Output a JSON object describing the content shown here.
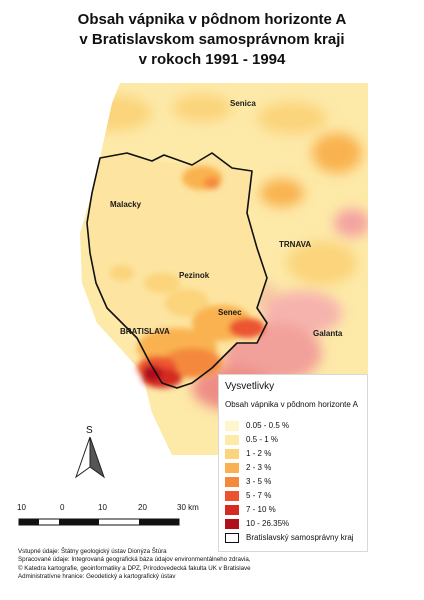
{
  "title": {
    "line1": "Obsah vápnika v pôdnom horizonte A",
    "line2": "v Bratislavskom samosprávnom kraji",
    "line3": "v rokoch 1991 - 1994"
  },
  "places": {
    "senica": "Senica",
    "malacky": "Malacky",
    "trnava": "TRNAVA",
    "pezinok": "Pezinok",
    "senec": "Senec",
    "bratislava": "BRATISLAVA",
    "galanta": "Galanta"
  },
  "legend": {
    "title": "Vysvetlivky",
    "subtitle": "Obsah vápnika v pôdnom horizonte A",
    "classes": [
      {
        "label": "0.05 - 0.5 %",
        "color": "#fff5cc"
      },
      {
        "label": "0.5 - 1 %",
        "color": "#fde9a8"
      },
      {
        "label": "1 - 2 %",
        "color": "#fbd47c"
      },
      {
        "label": "2 - 3 %",
        "color": "#f9b24f"
      },
      {
        "label": "3 - 5 %",
        "color": "#f4893c"
      },
      {
        "label": "5 - 7 %",
        "color": "#ec5430"
      },
      {
        "label": "7 - 10 %",
        "color": "#d42a22"
      },
      {
        "label": "10 - 26.35%",
        "color": "#b0101a"
      }
    ],
    "boundary_label": "Bratislavský samosprávny kraj"
  },
  "north": {
    "label": "S"
  },
  "scale": {
    "ticks": [
      "10",
      "0",
      "10",
      "20",
      "30 km"
    ]
  },
  "credits": [
    "Vstupné údaje: Štátny geologický ústav Dionýza Štúra",
    "Spracované údaje: Integrovaná geografická báza údajov environmentálneho zdravia,",
    "© Katedra kartografie, geoinformatiky a DPZ, Prírodovedecká fakulta UK v Bratislave",
    "Administratívne hranice: Geodetický a kartografický ústav"
  ]
}
